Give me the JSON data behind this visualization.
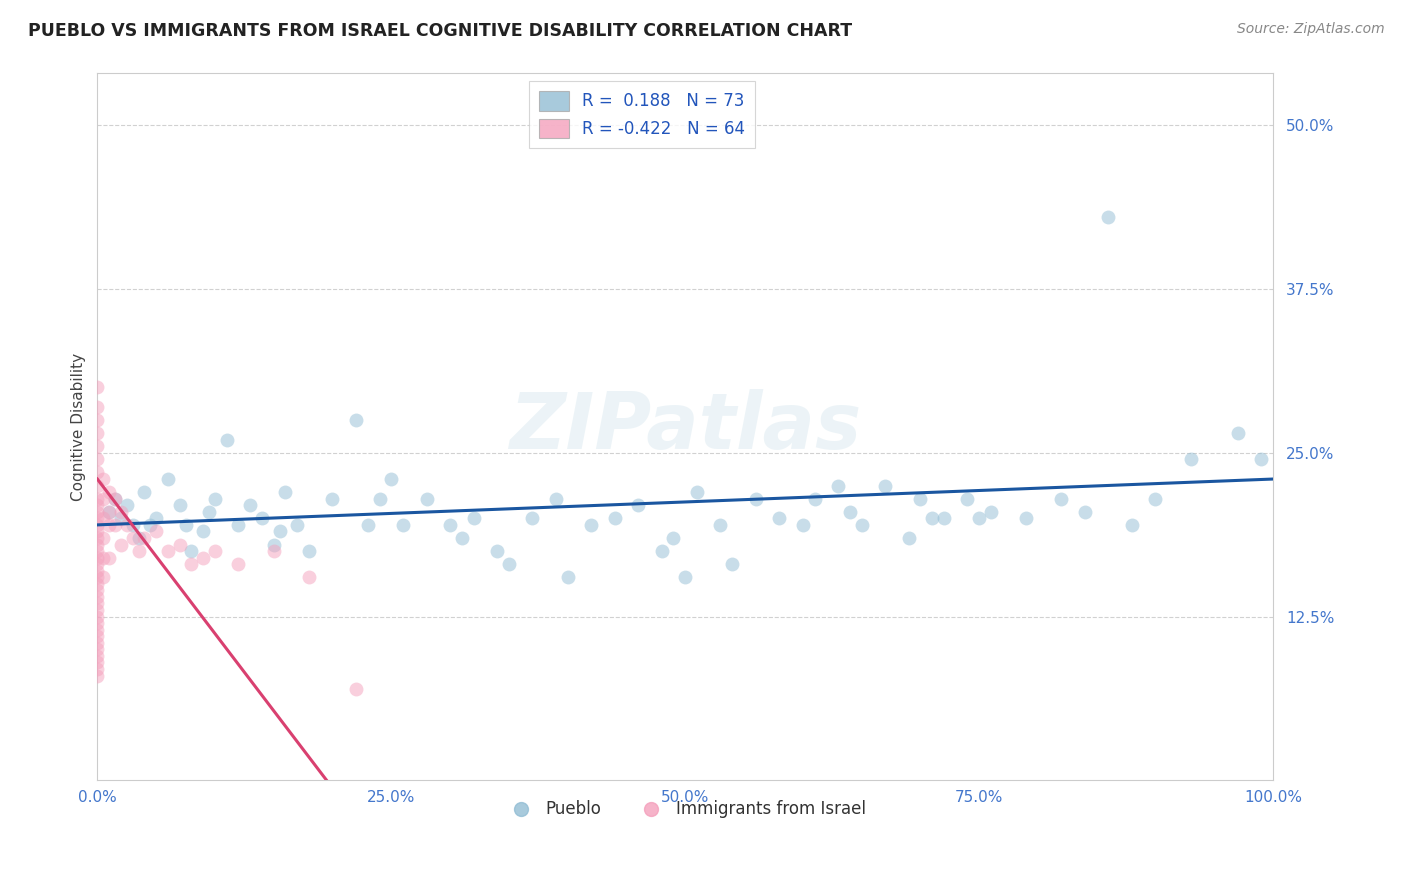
{
  "title": "PUEBLO VS IMMIGRANTS FROM ISRAEL COGNITIVE DISABILITY CORRELATION CHART",
  "source": "Source: ZipAtlas.com",
  "ylabel": "Cognitive Disability",
  "xlim": [
    0.0,
    1.0
  ],
  "ylim": [
    0.0,
    0.54
  ],
  "yticks": [
    0.125,
    0.25,
    0.375,
    0.5
  ],
  "ytick_labels": [
    "12.5%",
    "25.0%",
    "37.5%",
    "50.0%"
  ],
  "xticks": [
    0.0,
    0.25,
    0.5,
    0.75,
    1.0
  ],
  "xtick_labels": [
    "0.0%",
    "25.0%",
    "50.0%",
    "75.0%",
    "100.0%"
  ],
  "grid_color": "#cccccc",
  "background_color": "#ffffff",
  "watermark": "ZIPatlas",
  "legend_r1": "R =  0.188",
  "legend_n1": "N = 73",
  "legend_r2": "R = -0.422",
  "legend_n2": "N = 64",
  "blue_color": "#92BDD4",
  "pink_color": "#F4A0BC",
  "blue_line_color": "#1A56A0",
  "pink_line_color": "#D94070",
  "label1": "Pueblo",
  "label2": "Immigrants from Israel",
  "pueblo_x": [
    0.01,
    0.015,
    0.02,
    0.025,
    0.03,
    0.035,
    0.04,
    0.045,
    0.05,
    0.06,
    0.07,
    0.075,
    0.08,
    0.09,
    0.095,
    0.1,
    0.11,
    0.12,
    0.13,
    0.14,
    0.15,
    0.155,
    0.16,
    0.17,
    0.18,
    0.2,
    0.22,
    0.23,
    0.24,
    0.25,
    0.26,
    0.28,
    0.3,
    0.31,
    0.32,
    0.34,
    0.35,
    0.37,
    0.39,
    0.4,
    0.42,
    0.44,
    0.46,
    0.48,
    0.49,
    0.5,
    0.51,
    0.53,
    0.54,
    0.56,
    0.58,
    0.6,
    0.61,
    0.63,
    0.64,
    0.65,
    0.67,
    0.69,
    0.7,
    0.71,
    0.72,
    0.74,
    0.75,
    0.76,
    0.79,
    0.82,
    0.84,
    0.86,
    0.88,
    0.9,
    0.93,
    0.97,
    0.99
  ],
  "pueblo_y": [
    0.205,
    0.215,
    0.2,
    0.21,
    0.195,
    0.185,
    0.22,
    0.195,
    0.2,
    0.23,
    0.21,
    0.195,
    0.175,
    0.19,
    0.205,
    0.215,
    0.26,
    0.195,
    0.21,
    0.2,
    0.18,
    0.19,
    0.22,
    0.195,
    0.175,
    0.215,
    0.275,
    0.195,
    0.215,
    0.23,
    0.195,
    0.215,
    0.195,
    0.185,
    0.2,
    0.175,
    0.165,
    0.2,
    0.215,
    0.155,
    0.195,
    0.2,
    0.21,
    0.175,
    0.185,
    0.155,
    0.22,
    0.195,
    0.165,
    0.215,
    0.2,
    0.195,
    0.215,
    0.225,
    0.205,
    0.195,
    0.225,
    0.185,
    0.215,
    0.2,
    0.2,
    0.215,
    0.2,
    0.205,
    0.2,
    0.215,
    0.205,
    0.43,
    0.195,
    0.215,
    0.245,
    0.265,
    0.245
  ],
  "israel_x": [
    0.0,
    0.0,
    0.0,
    0.0,
    0.0,
    0.0,
    0.0,
    0.0,
    0.0,
    0.0,
    0.0,
    0.0,
    0.0,
    0.0,
    0.0,
    0.0,
    0.0,
    0.0,
    0.0,
    0.0,
    0.0,
    0.0,
    0.0,
    0.0,
    0.0,
    0.0,
    0.0,
    0.0,
    0.0,
    0.0,
    0.0,
    0.0,
    0.0,
    0.0,
    0.0,
    0.0,
    0.005,
    0.005,
    0.005,
    0.005,
    0.005,
    0.005,
    0.01,
    0.01,
    0.01,
    0.01,
    0.015,
    0.015,
    0.02,
    0.02,
    0.025,
    0.03,
    0.035,
    0.04,
    0.05,
    0.06,
    0.07,
    0.08,
    0.09,
    0.1,
    0.12,
    0.15,
    0.18,
    0.22
  ],
  "israel_y": [
    0.3,
    0.285,
    0.275,
    0.265,
    0.255,
    0.245,
    0.235,
    0.225,
    0.215,
    0.21,
    0.205,
    0.2,
    0.195,
    0.19,
    0.185,
    0.18,
    0.175,
    0.17,
    0.165,
    0.16,
    0.155,
    0.15,
    0.145,
    0.14,
    0.135,
    0.13,
    0.125,
    0.12,
    0.115,
    0.11,
    0.105,
    0.1,
    0.095,
    0.09,
    0.085,
    0.08,
    0.23,
    0.215,
    0.2,
    0.185,
    0.17,
    0.155,
    0.22,
    0.205,
    0.195,
    0.17,
    0.215,
    0.195,
    0.205,
    0.18,
    0.195,
    0.185,
    0.175,
    0.185,
    0.19,
    0.175,
    0.18,
    0.165,
    0.17,
    0.175,
    0.165,
    0.175,
    0.155,
    0.07
  ],
  "blue_trendline_x": [
    0.0,
    1.0
  ],
  "blue_trendline_y": [
    0.195,
    0.23
  ],
  "pink_trendline_x": [
    0.0,
    0.195
  ],
  "pink_trendline_y": [
    0.23,
    0.0
  ]
}
